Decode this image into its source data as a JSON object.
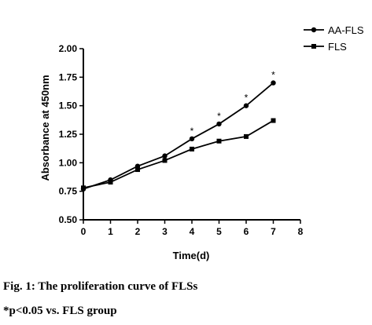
{
  "chart_data": {
    "type": "line",
    "xlabel": "Time(d)",
    "ylabel": "Absorbance at 450nm",
    "xlim": [
      0,
      8
    ],
    "ylim": [
      0.5,
      2.0
    ],
    "x_ticks": [
      "0",
      "1",
      "2",
      "3",
      "4",
      "5",
      "6",
      "7",
      "8"
    ],
    "y_ticks": [
      "0.50",
      "0.75",
      "1.00",
      "1.25",
      "1.50",
      "1.75",
      "2.00"
    ],
    "x": [
      0,
      1,
      2,
      3,
      4,
      5,
      6,
      7
    ],
    "series": [
      {
        "name": "AA-FLS",
        "marker": "circle",
        "values": [
          0.77,
          0.85,
          0.97,
          1.06,
          1.21,
          1.34,
          1.5,
          1.7
        ]
      },
      {
        "name": "FLS",
        "marker": "square",
        "values": [
          0.78,
          0.83,
          0.94,
          1.02,
          1.12,
          1.19,
          1.23,
          1.37
        ]
      }
    ],
    "annotations": {
      "text": "*",
      "series": "AA-FLS",
      "x": [
        4,
        5,
        6,
        7
      ]
    },
    "legend_position": "top-right",
    "grid": false
  },
  "caption": {
    "title": "Fig. 1: The proliferation curve of FLSs",
    "note": "*p<0.05 vs. FLS group"
  }
}
